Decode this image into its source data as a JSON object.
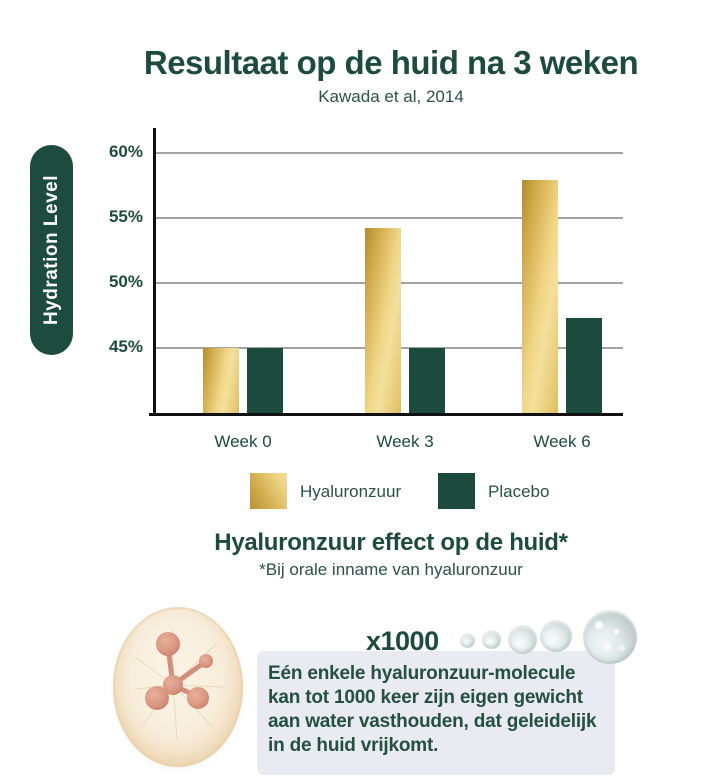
{
  "header": {
    "title": "Resultaat op de huid na 3 weken",
    "subtitle": "Kawada et al, 2014"
  },
  "chart_data": {
    "type": "bar",
    "title": "Resultaat op de huid na 3 weken",
    "subtitle": "Kawada et al, 2014",
    "ylabel": "Hydration Level",
    "categories": [
      "Week 0",
      "Week 3",
      "Week 6"
    ],
    "series": [
      {
        "name": "Hyaluronzuur",
        "values": [
          45,
          54.2,
          57.9
        ],
        "color": "gold"
      },
      {
        "name": "Placebo",
        "values": [
          45,
          45,
          47.3
        ],
        "color": "#1c4a3c"
      }
    ],
    "yticks": [
      {
        "label": "60%",
        "value": 60
      },
      {
        "label": "55%",
        "value": 55
      },
      {
        "label": "50%",
        "value": 50
      },
      {
        "label": "45%",
        "value": 45
      }
    ],
    "ylim": [
      40,
      62
    ],
    "unit": "%",
    "grid": true,
    "legend_position": "bottom-center"
  },
  "section2": {
    "heading": "Hyaluronzuur effect op de huid*",
    "subheading": "*Bij orale inname van hyaluronzuur"
  },
  "infographic": {
    "multiplier_label": "x1000",
    "description_lines": [
      "Eén enkele hyaluronzuur-molecule",
      "kan tot 1000 keer zijn eigen gewicht",
      "aan water vasthouden, dat geleidelijk",
      "in de huid vrijkomt."
    ]
  },
  "colors": {
    "accent_green": "#1c4a3c",
    "gold": "#e5c670",
    "gridline": "#a3a3a3",
    "axis": "#111111",
    "info_box_bg": "#e9eaf2",
    "page_bg": "#ffffff"
  }
}
